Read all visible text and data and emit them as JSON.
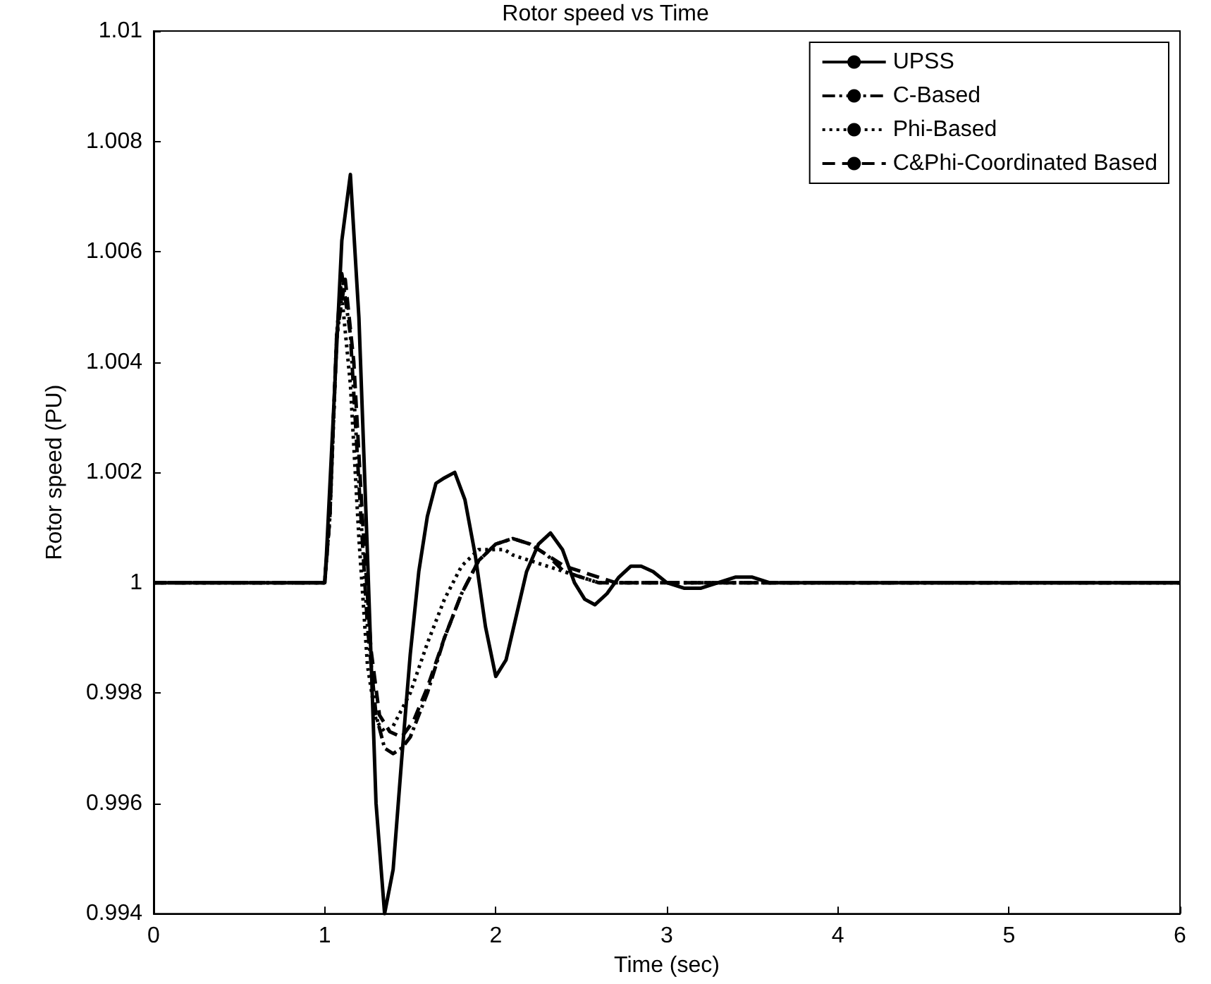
{
  "chart_data": {
    "type": "line",
    "title": "Rotor speed vs Time",
    "xlabel": "Time (sec)",
    "ylabel": "Rotor speed (PU)",
    "xlim": [
      0,
      6
    ],
    "xticks": [
      0,
      1,
      2,
      3,
      4,
      5,
      6
    ],
    "ylim": [
      0.994,
      1.01
    ],
    "yticks": [
      0.994,
      0.996,
      0.998,
      1,
      1.002,
      1.004,
      1.006,
      1.008,
      1.01
    ],
    "grid": false,
    "legend": "top right",
    "marker": "none",
    "series": [
      {
        "name": "UPSS",
        "color": "#000000",
        "line_style": "solid",
        "x": [
          0,
          1,
          1.01,
          1.05,
          1.1,
          1.15,
          1.2,
          1.25,
          1.3,
          1.35,
          1.4,
          1.45,
          1.5,
          1.55,
          1.6,
          1.65,
          1.7,
          1.76,
          1.82,
          1.88,
          1.94,
          2.0,
          2.06,
          2.12,
          2.18,
          2.25,
          2.32,
          2.39,
          2.46,
          2.52,
          2.58,
          2.65,
          2.72,
          2.79,
          2.85,
          2.92,
          3.0,
          3.1,
          3.2,
          3.3,
          3.4,
          3.5,
          3.6,
          4,
          5,
          6
        ],
        "values": [
          1,
          1,
          1.0005,
          1.003,
          1.0062,
          1.0074,
          1.0048,
          1.0005,
          0.996,
          0.994,
          0.9948,
          0.9968,
          0.9987,
          1.0002,
          1.0012,
          1.0018,
          1.0019,
          1.002,
          1.0015,
          1.0005,
          0.9992,
          0.9983,
          0.9986,
          0.9994,
          1.0002,
          1.0007,
          1.0009,
          1.0006,
          1.0,
          0.9997,
          0.9996,
          0.9998,
          1.0001,
          1.0003,
          1.0003,
          1.0002,
          1.0,
          0.9999,
          0.9999,
          1.0,
          1.0001,
          1.0001,
          1.0,
          1,
          1,
          1
        ]
      },
      {
        "name": "C-Based",
        "color": "#000000",
        "line_style": "dashdot",
        "x": [
          0,
          1,
          1.03,
          1.07,
          1.1,
          1.15,
          1.2,
          1.25,
          1.3,
          1.35,
          1.4,
          1.45,
          1.5,
          1.6,
          1.7,
          1.8,
          1.9,
          2.0,
          2.1,
          2.2,
          2.3,
          2.4,
          2.5,
          2.6,
          2.8,
          3,
          4,
          5,
          6
        ],
        "values": [
          1,
          1,
          1.0012,
          1.0045,
          1.0056,
          1.0045,
          1.0018,
          0.9992,
          0.9976,
          0.997,
          0.9969,
          0.997,
          0.9972,
          0.998,
          0.999,
          0.9998,
          1.0004,
          1.0007,
          1.0008,
          1.0007,
          1.0005,
          1.0002,
          1.0001,
          1.0,
          1.0,
          1,
          1,
          1,
          1
        ]
      },
      {
        "name": "Phi-Based",
        "color": "#000000",
        "line_style": "dotted",
        "x": [
          0,
          1,
          1.03,
          1.07,
          1.1,
          1.15,
          1.2,
          1.25,
          1.3,
          1.35,
          1.4,
          1.5,
          1.6,
          1.7,
          1.8,
          1.9,
          2.0,
          2.05,
          2.1,
          2.2,
          2.3,
          2.4,
          2.5,
          2.6,
          2.8,
          3,
          4,
          5,
          6
        ],
        "values": [
          1,
          1,
          1.0012,
          1.0044,
          1.0052,
          1.0036,
          1.0008,
          0.9985,
          0.9975,
          0.9973,
          0.9974,
          0.998,
          0.9989,
          0.9997,
          1.0003,
          1.0006,
          1.0006,
          1.0006,
          1.0005,
          1.0004,
          1.0003,
          1.0002,
          1.0001,
          1.0,
          1.0,
          1,
          1,
          1,
          1
        ]
      },
      {
        "name": "C&Phi-Coordinated Based",
        "color": "#000000",
        "line_style": "dashed",
        "x": [
          0,
          1,
          1.03,
          1.07,
          1.12,
          1.17,
          1.22,
          1.27,
          1.32,
          1.38,
          1.45,
          1.52,
          1.6,
          1.7,
          1.8,
          1.9,
          2.0,
          2.1,
          2.2,
          2.3,
          2.4,
          2.5,
          2.6,
          2.7,
          2.8,
          3,
          4,
          5,
          6
        ],
        "values": [
          1,
          1,
          1.0012,
          1.0045,
          1.0055,
          1.004,
          1.0012,
          0.9988,
          0.9976,
          0.9973,
          0.9972,
          0.9975,
          0.9981,
          0.999,
          0.9998,
          1.0004,
          1.0007,
          1.0008,
          1.0007,
          1.0005,
          1.0003,
          1.0002,
          1.0001,
          1.0,
          1.0,
          1,
          1,
          1,
          1
        ]
      }
    ]
  }
}
